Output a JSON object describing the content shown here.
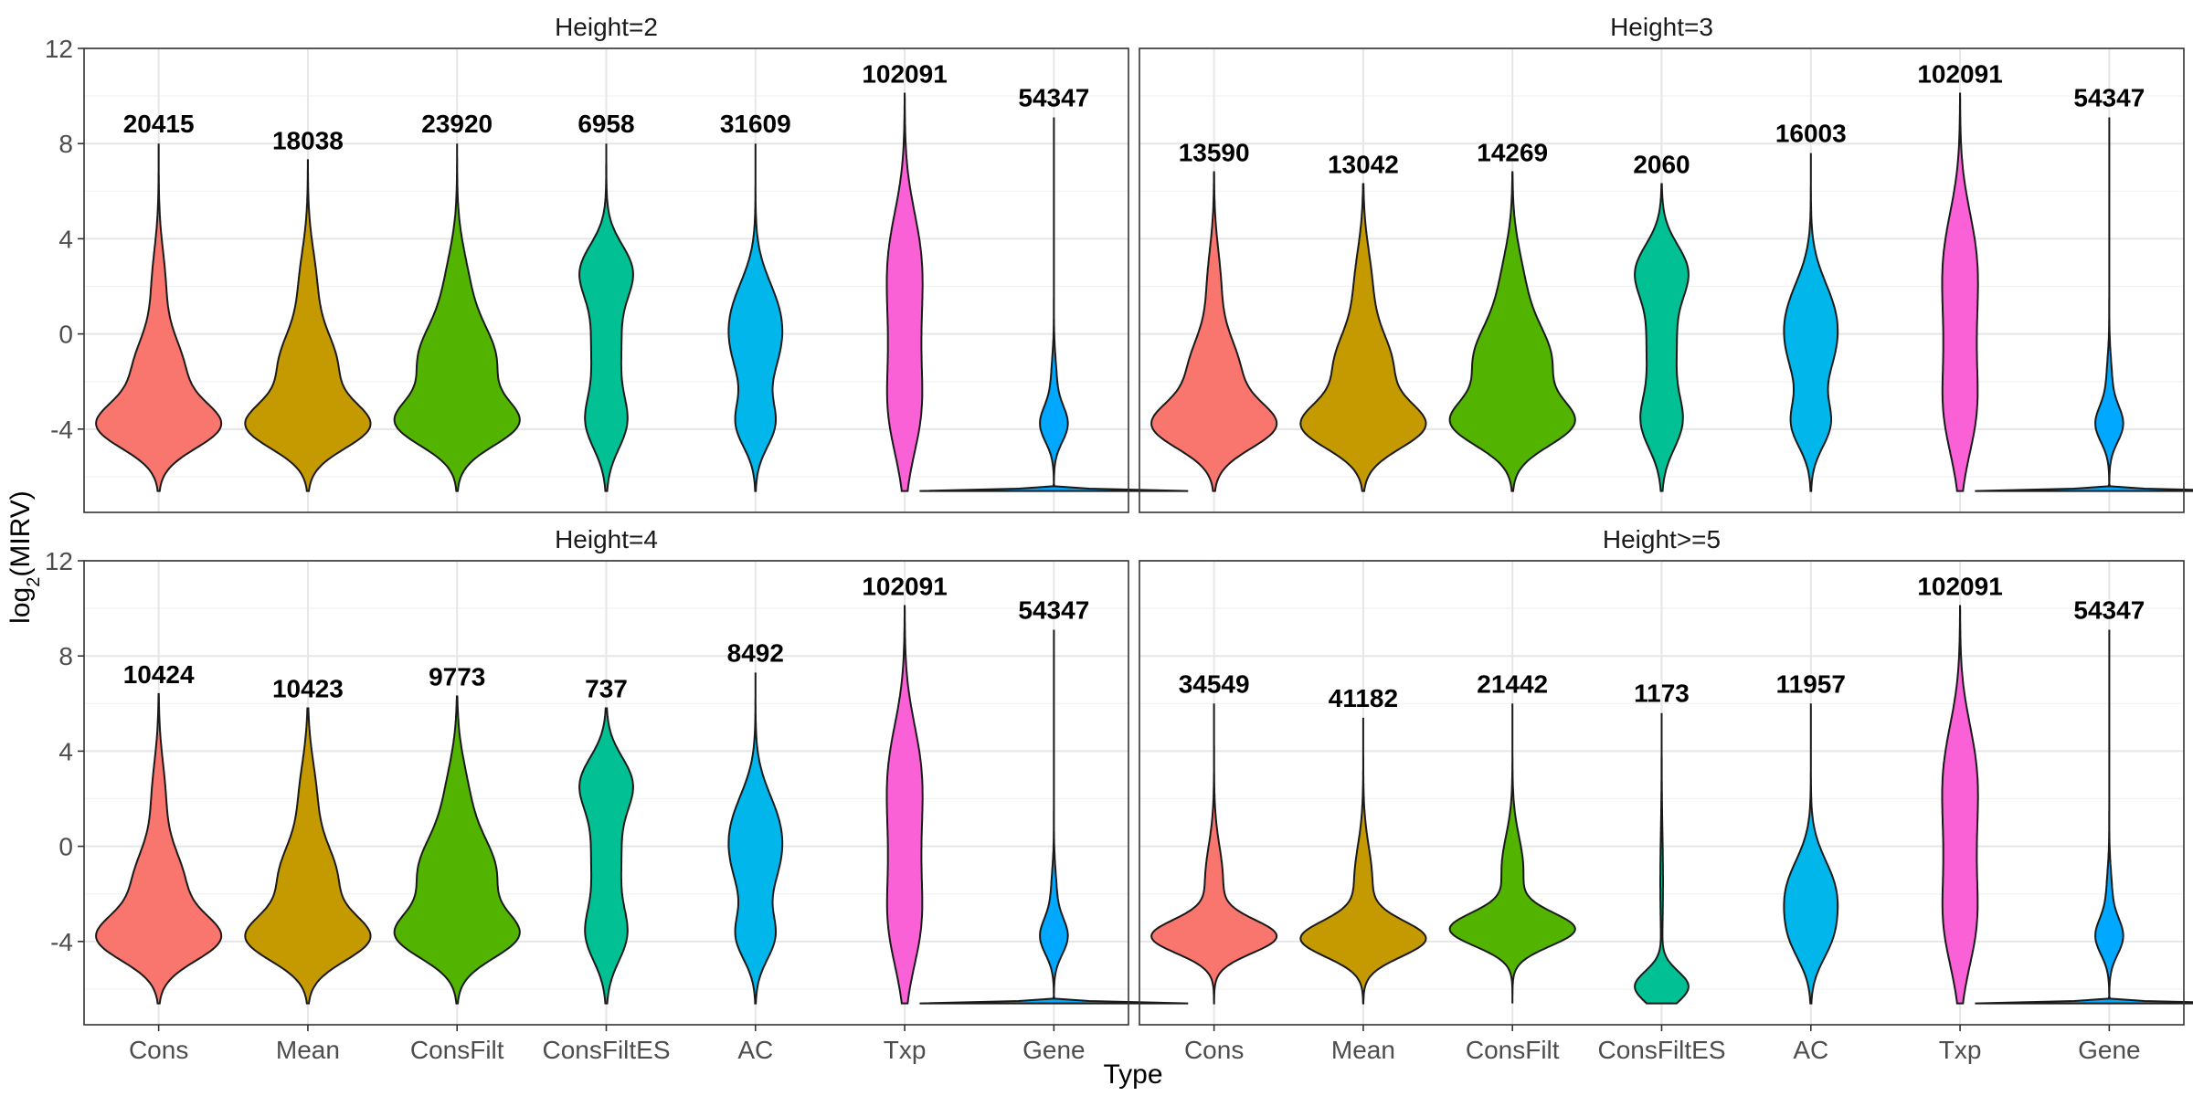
{
  "chart_data": {
    "type": "violin",
    "xlabel": "Type",
    "ylabel": "log2(MIRV)",
    "ylabel_base": "log",
    "ylabel_sub": "2",
    "ylabel_rest": "(MIRV)",
    "ylim": [
      -7.5,
      12
    ],
    "yticks": [
      -4,
      0,
      4,
      8,
      12
    ],
    "ytick_labels": [
      "-4",
      "0",
      "4",
      "8",
      "12"
    ],
    "grid": true,
    "categories": [
      "Cons",
      "Mean",
      "ConsFilt",
      "ConsFiltES",
      "AC",
      "Txp",
      "Gene"
    ],
    "colors": {
      "Cons": "#F8766D",
      "Mean": "#C49A00",
      "ConsFilt": "#53B400",
      "ConsFiltES": "#00C094",
      "AC": "#00B6EB",
      "Txp": "#FB61D7",
      "Gene": "#00A9FF"
    },
    "panels": [
      {
        "title": "Height=2",
        "counts": [
          "20415",
          "18038",
          "23920",
          "6958",
          "31609",
          "102091",
          "54347"
        ],
        "max": [
          8.0,
          7.3,
          8.0,
          8.0,
          8.0,
          10.1,
          9.1
        ],
        "min": [
          -6.6,
          -6.6,
          -6.6,
          -6.6,
          -6.6,
          -6.6,
          -6.6
        ]
      },
      {
        "title": "Height=3",
        "counts": [
          "13590",
          "13042",
          "14269",
          "2060",
          "16003",
          "102091",
          "54347"
        ],
        "max": [
          6.8,
          6.3,
          6.8,
          6.3,
          7.6,
          10.1,
          9.1
        ],
        "min": [
          -6.6,
          -6.6,
          -6.6,
          -6.6,
          -6.6,
          -6.6,
          -6.6
        ]
      },
      {
        "title": "Height=4",
        "counts": [
          "10424",
          "10423",
          "9773",
          "737",
          "8492",
          "102091",
          "54347"
        ],
        "max": [
          6.4,
          5.8,
          6.3,
          5.8,
          7.3,
          10.1,
          9.1
        ],
        "min": [
          -6.6,
          -6.6,
          -6.6,
          -6.6,
          -6.6,
          -6.6,
          -6.6
        ]
      },
      {
        "title": "Height>=5",
        "counts": [
          "34549",
          "41182",
          "21442",
          "1173",
          "11957",
          "102091",
          "54347"
        ],
        "max": [
          6.0,
          5.4,
          6.0,
          5.6,
          6.0,
          10.1,
          9.1
        ],
        "min": [
          -6.6,
          -6.6,
          -6.6,
          -6.6,
          -6.6,
          -6.6,
          -6.6
        ]
      }
    ]
  }
}
